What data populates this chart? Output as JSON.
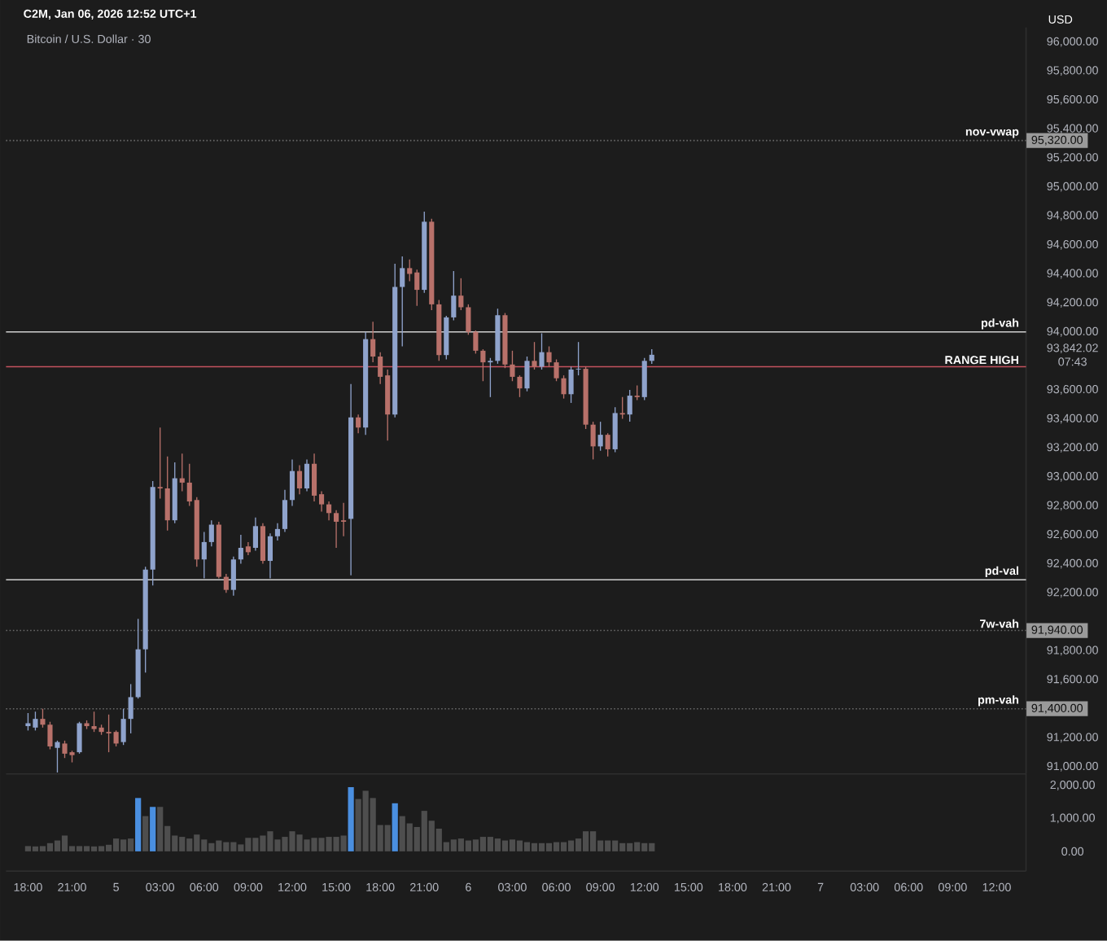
{
  "chart_data": [
    {
      "type": "candlestick",
      "title": "Bitcoin / U.S. Dollar · 30",
      "ylabel": "USD",
      "annotations": [
        "C2M, Jan 06, 2026 12:52 UTC+1",
        {
          "text": "95,320.00",
          "x": "2026-01-07T14:00",
          "y": 95320
        },
        {
          "text": "91,940.00",
          "x": "2026-01-07T14:00",
          "y": 91940
        },
        {
          "text": "91,400.00",
          "x": "2026-01-07T14:00",
          "y": 91400
        }
      ],
      "x": [
        "2026-01-04T18:00",
        "2026-01-04T18:30",
        "2026-01-04T19:00",
        "2026-01-04T19:30",
        "2026-01-04T20:00",
        "2026-01-04T20:30",
        "2026-01-04T21:00",
        "2026-01-04T21:30",
        "2026-01-04T22:00",
        "2026-01-04T22:30",
        "2026-01-04T23:00",
        "2026-01-04T23:30",
        "2026-01-05T00:00",
        "2026-01-05T00:30",
        "2026-01-05T01:00",
        "2026-01-05T01:30",
        "2026-01-05T02:00",
        "2026-01-05T02:30",
        "2026-01-05T03:00",
        "2026-01-05T03:30",
        "2026-01-05T04:00",
        "2026-01-05T04:30",
        "2026-01-05T05:00",
        "2026-01-05T05:30",
        "2026-01-05T06:00",
        "2026-01-05T06:30",
        "2026-01-05T07:00",
        "2026-01-05T07:30",
        "2026-01-05T08:00",
        "2026-01-05T08:30",
        "2026-01-05T09:00",
        "2026-01-05T09:30",
        "2026-01-05T10:00",
        "2026-01-05T10:30",
        "2026-01-05T11:00",
        "2026-01-05T11:30",
        "2026-01-05T12:00",
        "2026-01-05T12:30",
        "2026-01-05T13:00",
        "2026-01-05T13:30",
        "2026-01-05T14:00",
        "2026-01-05T14:30",
        "2026-01-05T15:00",
        "2026-01-05T15:30",
        "2026-01-05T16:00",
        "2026-01-05T16:30",
        "2026-01-05T17:00",
        "2026-01-05T17:30",
        "2026-01-05T18:00",
        "2026-01-05T18:30",
        "2026-01-05T19:00",
        "2026-01-05T19:30",
        "2026-01-05T20:00",
        "2026-01-05T20:30",
        "2026-01-05T21:00",
        "2026-01-05T21:30",
        "2026-01-05T22:00",
        "2026-01-05T22:30",
        "2026-01-05T23:00",
        "2026-01-05T23:30",
        "2026-01-06T00:00",
        "2026-01-06T00:30",
        "2026-01-06T01:00",
        "2026-01-06T01:30",
        "2026-01-06T02:00",
        "2026-01-06T02:30",
        "2026-01-06T03:00",
        "2026-01-06T03:30",
        "2026-01-06T04:00",
        "2026-01-06T04:30",
        "2026-01-06T05:00",
        "2026-01-06T05:30",
        "2026-01-06T06:00",
        "2026-01-06T06:30",
        "2026-01-06T07:00",
        "2026-01-06T07:30",
        "2026-01-06T08:00",
        "2026-01-06T08:30",
        "2026-01-06T09:00",
        "2026-01-06T09:30",
        "2026-01-06T10:00",
        "2026-01-06T10:30",
        "2026-01-06T11:00",
        "2026-01-06T11:30",
        "2026-01-06T12:00",
        "2026-01-06T12:30"
      ],
      "ohlc": [
        [
          91280,
          91370,
          91250,
          91300
        ],
        [
          91270,
          91380,
          91250,
          91330
        ],
        [
          91330,
          91400,
          91270,
          91290
        ],
        [
          91290,
          91310,
          91120,
          91140
        ],
        [
          91130,
          91180,
          90960,
          91170
        ],
        [
          91160,
          91180,
          91060,
          91090
        ],
        [
          91100,
          91110,
          91030,
          91080
        ],
        [
          91100,
          91310,
          91090,
          91300
        ],
        [
          91300,
          91320,
          91260,
          91280
        ],
        [
          91280,
          91380,
          91240,
          91260
        ],
        [
          91270,
          91290,
          91220,
          91240
        ],
        [
          91240,
          91360,
          91100,
          91230
        ],
        [
          91240,
          91250,
          91140,
          91160
        ],
        [
          91170,
          91400,
          91150,
          91330
        ],
        [
          91330,
          91570,
          91230,
          91480
        ],
        [
          91480,
          92020,
          91470,
          91810
        ],
        [
          91810,
          92380,
          91650,
          92360
        ],
        [
          92360,
          92970,
          92250,
          92930
        ],
        [
          92930,
          93340,
          92850,
          92920
        ],
        [
          92920,
          93140,
          92630,
          92700
        ],
        [
          92700,
          93100,
          92680,
          92990
        ],
        [
          92990,
          93160,
          92900,
          92960
        ],
        [
          92960,
          93090,
          92800,
          92830
        ],
        [
          92840,
          92860,
          92380,
          92430
        ],
        [
          92430,
          92620,
          92300,
          92550
        ],
        [
          92550,
          92700,
          92520,
          92670
        ],
        [
          92670,
          92690,
          92300,
          92310
        ],
        [
          92310,
          92330,
          92200,
          92220
        ],
        [
          92220,
          92450,
          92180,
          92430
        ],
        [
          92430,
          92600,
          92400,
          92510
        ],
        [
          92520,
          92550,
          92460,
          92480
        ],
        [
          92510,
          92720,
          92490,
          92660
        ],
        [
          92660,
          92680,
          92400,
          92420
        ],
        [
          92420,
          92610,
          92300,
          92590
        ],
        [
          92590,
          92680,
          92560,
          92640
        ],
        [
          92640,
          92910,
          92620,
          92840
        ],
        [
          92840,
          93120,
          92800,
          93040
        ],
        [
          93040,
          93080,
          92880,
          92920
        ],
        [
          92920,
          93120,
          92900,
          93090
        ],
        [
          93090,
          93160,
          92830,
          92870
        ],
        [
          92880,
          92900,
          92760,
          92810
        ],
        [
          92810,
          92830,
          92700,
          92750
        ],
        [
          92750,
          92770,
          92510,
          92690
        ],
        [
          92700,
          92820,
          92590,
          92690
        ],
        [
          92710,
          93640,
          92320,
          93410
        ],
        [
          93410,
          93430,
          93300,
          93340
        ],
        [
          93340,
          94000,
          93290,
          93950
        ],
        [
          93950,
          94070,
          93790,
          93830
        ],
        [
          93830,
          93860,
          93640,
          93690
        ],
        [
          93700,
          93740,
          93250,
          93430
        ],
        [
          93430,
          94470,
          93410,
          94310
        ],
        [
          94310,
          94520,
          93900,
          94440
        ],
        [
          94440,
          94500,
          94350,
          94400
        ],
        [
          94410,
          94430,
          94180,
          94290
        ],
        [
          94290,
          94830,
          94270,
          94760
        ],
        [
          94760,
          94780,
          94150,
          94190
        ],
        [
          94190,
          94220,
          93800,
          93840
        ],
        [
          93840,
          94110,
          93810,
          94100
        ],
        [
          94100,
          94420,
          94080,
          94250
        ],
        [
          94250,
          94370,
          94150,
          94170
        ],
        [
          94170,
          94190,
          93980,
          94000
        ],
        [
          94000,
          94010,
          93850,
          93870
        ],
        [
          93870,
          93880,
          93660,
          93790
        ],
        [
          93790,
          93820,
          93550,
          93800
        ],
        [
          93800,
          94160,
          93780,
          94115
        ],
        [
          94115,
          94130,
          93750,
          93775
        ],
        [
          93775,
          93870,
          93660,
          93690
        ],
        [
          93690,
          93700,
          93550,
          93610
        ],
        [
          93610,
          93830,
          93590,
          93800
        ],
        [
          93800,
          93930,
          93740,
          93760
        ],
        [
          93760,
          93990,
          93740,
          93860
        ],
        [
          93860,
          93900,
          93760,
          93790
        ],
        [
          93790,
          93810,
          93660,
          93680
        ],
        [
          93680,
          93700,
          93540,
          93570
        ],
        [
          93570,
          93760,
          93510,
          93740
        ],
        [
          93740,
          93930,
          93700,
          93745
        ],
        [
          93745,
          93760,
          93330,
          93360
        ],
        [
          93360,
          93380,
          93120,
          93210
        ],
        [
          93210,
          93380,
          93180,
          93290
        ],
        [
          93290,
          93300,
          93140,
          93190
        ],
        [
          93190,
          93480,
          93170,
          93440
        ],
        [
          93440,
          93550,
          93400,
          93430
        ],
        [
          93430,
          93600,
          93380,
          93560
        ],
        [
          93560,
          93630,
          93530,
          93550
        ],
        [
          93550,
          93820,
          93530,
          93800
        ],
        [
          93800,
          93880,
          93780,
          93842.02
        ]
      ],
      "xlim": [
        "2026-01-04T16:30",
        "2026-01-07T14:00"
      ],
      "ylim": [
        90950,
        96100
      ],
      "yticks": [
        {
          "value": 91000,
          "label": "91,000.00"
        },
        {
          "value": 91200,
          "label": "91,200.00"
        },
        {
          "value": 91600,
          "label": "91,600.00"
        },
        {
          "value": 91800,
          "label": "91,800.00"
        },
        {
          "value": 92200,
          "label": "92,200.00"
        },
        {
          "value": 92400,
          "label": "92,400.00"
        },
        {
          "value": 92600,
          "label": "92,600.00"
        },
        {
          "value": 92800,
          "label": "92,800.00"
        },
        {
          "value": 93000,
          "label": "93,000.00"
        },
        {
          "value": 93200,
          "label": "93,200.00"
        },
        {
          "value": 93400,
          "label": "93,400.00"
        },
        {
          "value": 93600,
          "label": "93,600.00"
        },
        {
          "value": 93842.02,
          "label": "93,842.02 07:43"
        },
        {
          "value": 94000,
          "label": "94,000.00"
        },
        {
          "value": 94200,
          "label": "94,200.00"
        },
        {
          "value": 94400,
          "label": "94,400.00"
        },
        {
          "value": 94600,
          "label": "94,600.00"
        },
        {
          "value": 94800,
          "label": "94,800.00"
        },
        {
          "value": 95000,
          "label": "95,000.00"
        },
        {
          "value": 95200,
          "label": "95,200.00"
        },
        {
          "value": 95400,
          "label": "95,400.00"
        },
        {
          "value": 95600,
          "label": "95,600.00"
        },
        {
          "value": 95800,
          "label": "95,800.00"
        },
        {
          "value": 96000,
          "label": "96,000.00"
        }
      ],
      "tick_labels": "y",
      "ref_lines": [
        {
          "axis": "y",
          "value": 95320,
          "label": "nov-vwap",
          "color": "#6a6a6a",
          "line_style": "dotted"
        },
        {
          "axis": "y",
          "value": 94000,
          "label": "pd-vah",
          "color": "#d0d0d0",
          "line_style": "solid"
        },
        {
          "axis": "y",
          "value": 93760,
          "label": "RANGE HIGH",
          "color": "#c4525e",
          "line_style": "solid"
        },
        {
          "axis": "y",
          "value": 92290,
          "label": "pd-val",
          "color": "#d0d0d0",
          "line_style": "solid"
        },
        {
          "axis": "y",
          "value": 91940,
          "label": "7w-vah",
          "color": "#6a6a6a",
          "line_style": "dotted"
        },
        {
          "axis": "y",
          "value": 91400,
          "label": "pm-vah",
          "color": "#6a6a6a",
          "line_style": "dotted"
        }
      ]
    },
    {
      "type": "bar",
      "x": [
        "2026-01-04T18:00",
        "2026-01-04T18:30",
        "2026-01-04T19:00",
        "2026-01-04T19:30",
        "2026-01-04T20:00",
        "2026-01-04T20:30",
        "2026-01-04T21:00",
        "2026-01-04T21:30",
        "2026-01-04T22:00",
        "2026-01-04T22:30",
        "2026-01-04T23:00",
        "2026-01-04T23:30",
        "2026-01-05T00:00",
        "2026-01-05T00:30",
        "2026-01-05T01:00",
        "2026-01-05T01:30",
        "2026-01-05T02:00",
        "2026-01-05T02:30",
        "2026-01-05T03:00",
        "2026-01-05T03:30",
        "2026-01-05T04:00",
        "2026-01-05T04:30",
        "2026-01-05T05:00",
        "2026-01-05T05:30",
        "2026-01-05T06:00",
        "2026-01-05T06:30",
        "2026-01-05T07:00",
        "2026-01-05T07:30",
        "2026-01-05T08:00",
        "2026-01-05T08:30",
        "2026-01-05T09:00",
        "2026-01-05T09:30",
        "2026-01-05T10:00",
        "2026-01-05T10:30",
        "2026-01-05T11:00",
        "2026-01-05T11:30",
        "2026-01-05T12:00",
        "2026-01-05T12:30",
        "2026-01-05T13:00",
        "2026-01-05T13:30",
        "2026-01-05T14:00",
        "2026-01-05T14:30",
        "2026-01-05T15:00",
        "2026-01-05T15:30",
        "2026-01-05T16:00",
        "2026-01-05T16:30",
        "2026-01-05T17:00",
        "2026-01-05T17:30",
        "2026-01-05T18:00",
        "2026-01-05T18:30",
        "2026-01-05T19:00",
        "2026-01-05T19:30",
        "2026-01-05T20:00",
        "2026-01-05T20:30",
        "2026-01-05T21:00",
        "2026-01-05T21:30",
        "2026-01-05T22:00",
        "2026-01-05T22:30",
        "2026-01-05T23:00",
        "2026-01-05T23:30",
        "2026-01-06T00:00",
        "2026-01-06T00:30",
        "2026-01-06T01:00",
        "2026-01-06T01:30",
        "2026-01-06T02:00",
        "2026-01-06T02:30",
        "2026-01-06T03:00",
        "2026-01-06T03:30",
        "2026-01-06T04:00",
        "2026-01-06T04:30",
        "2026-01-06T05:00",
        "2026-01-06T05:30",
        "2026-01-06T06:00",
        "2026-01-06T06:30",
        "2026-01-06T07:00",
        "2026-01-06T07:30",
        "2026-01-06T08:00",
        "2026-01-06T08:30",
        "2026-01-06T09:00",
        "2026-01-06T09:30",
        "2026-01-06T10:00",
        "2026-01-06T10:30",
        "2026-01-06T11:00",
        "2026-01-06T11:30",
        "2026-01-06T12:00",
        "2026-01-06T12:30"
      ],
      "values": [
        160,
        150,
        160,
        250,
        330,
        480,
        160,
        160,
        160,
        150,
        160,
        200,
        390,
        360,
        390,
        1620,
        1070,
        1350,
        1350,
        770,
        480,
        440,
        390,
        510,
        360,
        250,
        330,
        280,
        280,
        210,
        410,
        410,
        480,
        610,
        360,
        440,
        610,
        510,
        360,
        410,
        410,
        440,
        440,
        480,
        1950,
        1590,
        1840,
        1620,
        800,
        800,
        1460,
        1070,
        850,
        740,
        1230,
        930,
        690,
        280,
        360,
        390,
        330,
        360,
        440,
        440,
        390,
        330,
        360,
        330,
        280,
        250,
        250,
        250,
        280,
        280,
        330,
        390,
        610,
        610,
        330,
        330,
        330,
        250,
        250,
        280,
        250,
        250
      ],
      "colors": [
        "#4e4e4e",
        "#4e4e4e",
        "#4e4e4e",
        "#4e4e4e",
        "#4e4e4e",
        "#4e4e4e",
        "#4e4e4e",
        "#4e4e4e",
        "#4e4e4e",
        "#4e4e4e",
        "#4e4e4e",
        "#4e4e4e",
        "#4e4e4e",
        "#4e4e4e",
        "#4e4e4e",
        "#4a8fe0",
        "#4e4e4e",
        "#4a8fe0",
        "#4e4e4e",
        "#4e4e4e",
        "#4e4e4e",
        "#4e4e4e",
        "#4e4e4e",
        "#4e4e4e",
        "#4e4e4e",
        "#4e4e4e",
        "#4e4e4e",
        "#4e4e4e",
        "#4e4e4e",
        "#4e4e4e",
        "#4e4e4e",
        "#4e4e4e",
        "#4e4e4e",
        "#4e4e4e",
        "#4e4e4e",
        "#4e4e4e",
        "#4e4e4e",
        "#4e4e4e",
        "#4e4e4e",
        "#4e4e4e",
        "#4e4e4e",
        "#4e4e4e",
        "#4e4e4e",
        "#4e4e4e",
        "#4a8fe0",
        "#4e4e4e",
        "#4e4e4e",
        "#4e4e4e",
        "#4e4e4e",
        "#4e4e4e",
        "#4a8fe0",
        "#4e4e4e",
        "#4e4e4e",
        "#4e4e4e",
        "#4e4e4e",
        "#4e4e4e",
        "#4e4e4e",
        "#4e4e4e",
        "#4e4e4e",
        "#4e4e4e",
        "#4e4e4e",
        "#4e4e4e",
        "#4e4e4e",
        "#4e4e4e",
        "#4e4e4e",
        "#4e4e4e",
        "#4e4e4e",
        "#4e4e4e",
        "#4e4e4e",
        "#4e4e4e",
        "#4e4e4e",
        "#4e4e4e",
        "#4e4e4e",
        "#4e4e4e",
        "#4e4e4e",
        "#4e4e4e",
        "#4e4e4e",
        "#4e4e4e",
        "#4e4e4e",
        "#4e4e4e",
        "#4e4e4e",
        "#4e4e4e",
        "#4e4e4e",
        "#4e4e4e",
        "#4e4e4e",
        "#4e4e4e"
      ],
      "xlim": [
        "2026-01-04T16:30",
        "2026-01-07T14:00"
      ],
      "xticks": [
        {
          "value": "2026-01-04T18:00",
          "label": "18:00"
        },
        {
          "value": "2026-01-04T21:00",
          "label": "21:00"
        },
        {
          "value": "2026-01-05",
          "label": "5"
        },
        {
          "value": "2026-01-05T03:00",
          "label": "03:00"
        },
        {
          "value": "2026-01-05T06:00",
          "label": "06:00"
        },
        {
          "value": "2026-01-05T09:00",
          "label": "09:00"
        },
        {
          "value": "2026-01-05T12:00",
          "label": "12:00"
        },
        {
          "value": "2026-01-05T15:00",
          "label": "15:00"
        },
        {
          "value": "2026-01-05T18:00",
          "label": "18:00"
        },
        {
          "value": "2026-01-05T21:00",
          "label": "21:00"
        },
        {
          "value": "2026-01-06",
          "label": "6"
        },
        {
          "value": "2026-01-06T03:00",
          "label": "03:00"
        },
        {
          "value": "2026-01-06T06:00",
          "label": "06:00"
        },
        {
          "value": "2026-01-06T09:00",
          "label": "09:00"
        },
        {
          "value": "2026-01-06T12:00",
          "label": "12:00"
        },
        {
          "value": "2026-01-06T15:00",
          "label": "15:00"
        },
        {
          "value": "2026-01-06T18:00",
          "label": "18:00"
        },
        {
          "value": "2026-01-06T21:00",
          "label": "21:00"
        },
        {
          "value": "2026-01-07",
          "label": "7"
        },
        {
          "value": "2026-01-07T03:00",
          "label": "03:00"
        },
        {
          "value": "2026-01-07T06:00",
          "label": "06:00"
        },
        {
          "value": "2026-01-07T09:00",
          "label": "09:00"
        },
        {
          "value": "2026-01-07T12:00",
          "label": "12:00"
        }
      ],
      "ylim": [
        -600,
        2350
      ],
      "yticks": [
        {
          "value": 0,
          "label": "0.00"
        },
        {
          "value": 1000,
          "label": "1,000.00"
        },
        {
          "value": 2000,
          "label": "2,000.00"
        }
      ]
    }
  ]
}
